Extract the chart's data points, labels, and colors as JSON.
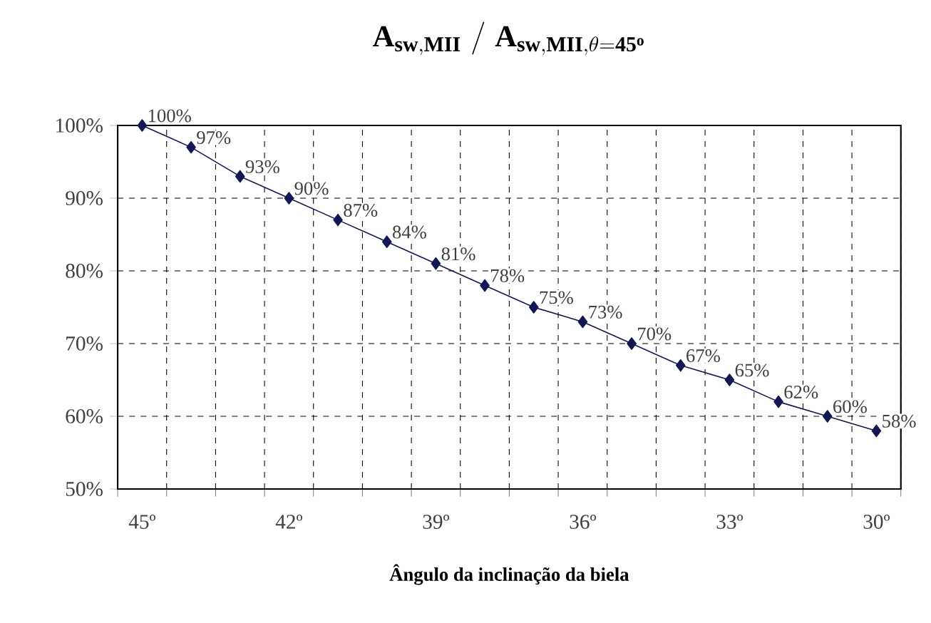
{
  "chart_data": {
    "type": "line",
    "title": "\\mathbf{A}_{\\mathbf{sw,MII}}\\;\\mathbf{/}\\;\\mathbf{A}_{\\mathbf{sw,MII},\\theta\\mathbf{=45^{o}}}",
    "xlabel": "Ângulo da inclinação da biela",
    "categories": [
      "45º",
      null,
      null,
      "42º",
      null,
      null,
      "39º",
      null,
      null,
      "36º",
      null,
      null,
      "33º",
      null,
      null,
      "30º"
    ],
    "series": [
      {
        "color": "#141852",
        "values": [
          100,
          97,
          93,
          90,
          87,
          84,
          81,
          78,
          75,
          73,
          70,
          67,
          65,
          62,
          60,
          58
        ]
      }
    ],
    "value_labels": [
      "100%",
      "97%",
      "93%",
      "90%",
      "87%",
      "84%",
      "81%",
      "78%",
      "75%",
      "73%",
      "70%",
      "67%",
      "65%",
      "62%",
      "60%",
      "58%"
    ],
    "ylim": [
      50,
      100
    ],
    "yticks": [
      {
        "value": 50,
        "label": "50%"
      },
      {
        "value": 60,
        "label": "60%"
      },
      {
        "value": 70,
        "label": "70%"
      },
      {
        "value": 80,
        "label": "80%"
      },
      {
        "value": 90,
        "label": "90%"
      },
      {
        "value": 100,
        "label": "100%"
      }
    ],
    "grid": true,
    "marker": "diamond",
    "line_style": "solid"
  }
}
